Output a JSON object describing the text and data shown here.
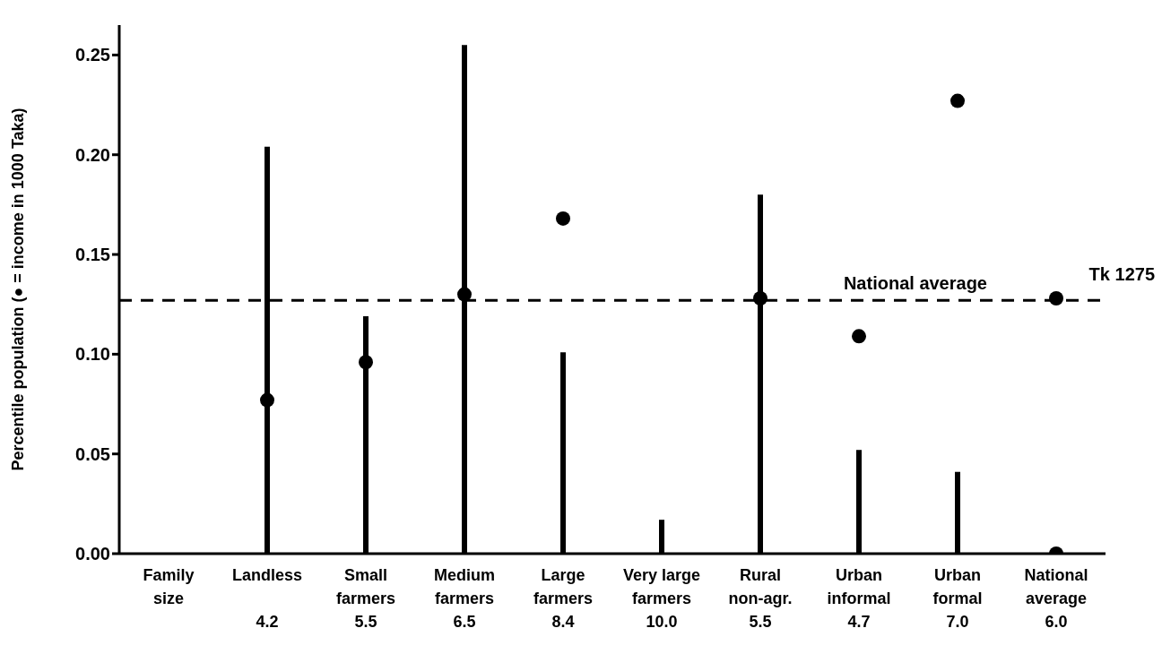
{
  "chart_data": {
    "type": "bar",
    "ylabel": "Percentile population (● = income in 1000 Taka)",
    "categories": [
      "Family\nsize",
      "Landless\n\n4.2",
      "Small\nfarmers\n5.5",
      "Medium\nfarmers\n6.5",
      "Large\nfarmers\n8.4",
      "Very large\nfarmers\n10.0",
      "Rural\nnon-agr.\n5.5",
      "Urban\ninformal\n4.7",
      "Urban\nformal\n7.0",
      "National\naverage\n6.0"
    ],
    "series": [
      {
        "color": "#000000",
        "values": [
          null,
          0.204,
          0.119,
          0.255,
          0.101,
          0.017,
          0.18,
          0.052,
          0.041,
          null
        ]
      },
      {
        "type": "scatter",
        "color": "#000000",
        "values": [
          null,
          0.077,
          0.096,
          0.13,
          0.168,
          null,
          0.128,
          0.109,
          0.227,
          0.128
        ]
      },
      {
        "type": "scatter",
        "color": "#000000",
        "values": [
          null,
          null,
          null,
          null,
          null,
          null,
          null,
          null,
          null,
          0
        ]
      }
    ],
    "ylim": [
      0,
      0.265
    ],
    "yticks": [
      {
        "value": 0,
        "label": "0.00"
      },
      {
        "value": 0.05,
        "label": "0.05"
      },
      {
        "value": 0.1,
        "label": "0.10"
      },
      {
        "value": 0.15,
        "label": "0.15"
      },
      {
        "value": 0.2,
        "label": "0.20"
      },
      {
        "value": 0.25,
        "label": "0.25"
      }
    ],
    "ref_lines": [
      {
        "axis": "y",
        "value": 0.127,
        "label": "National average",
        "line_style": "dashed",
        "color": "#000000"
      }
    ],
    "annotations": [
      "Tk 1275"
    ],
    "marker": "circle",
    "grid": false,
    "legend": false
  }
}
